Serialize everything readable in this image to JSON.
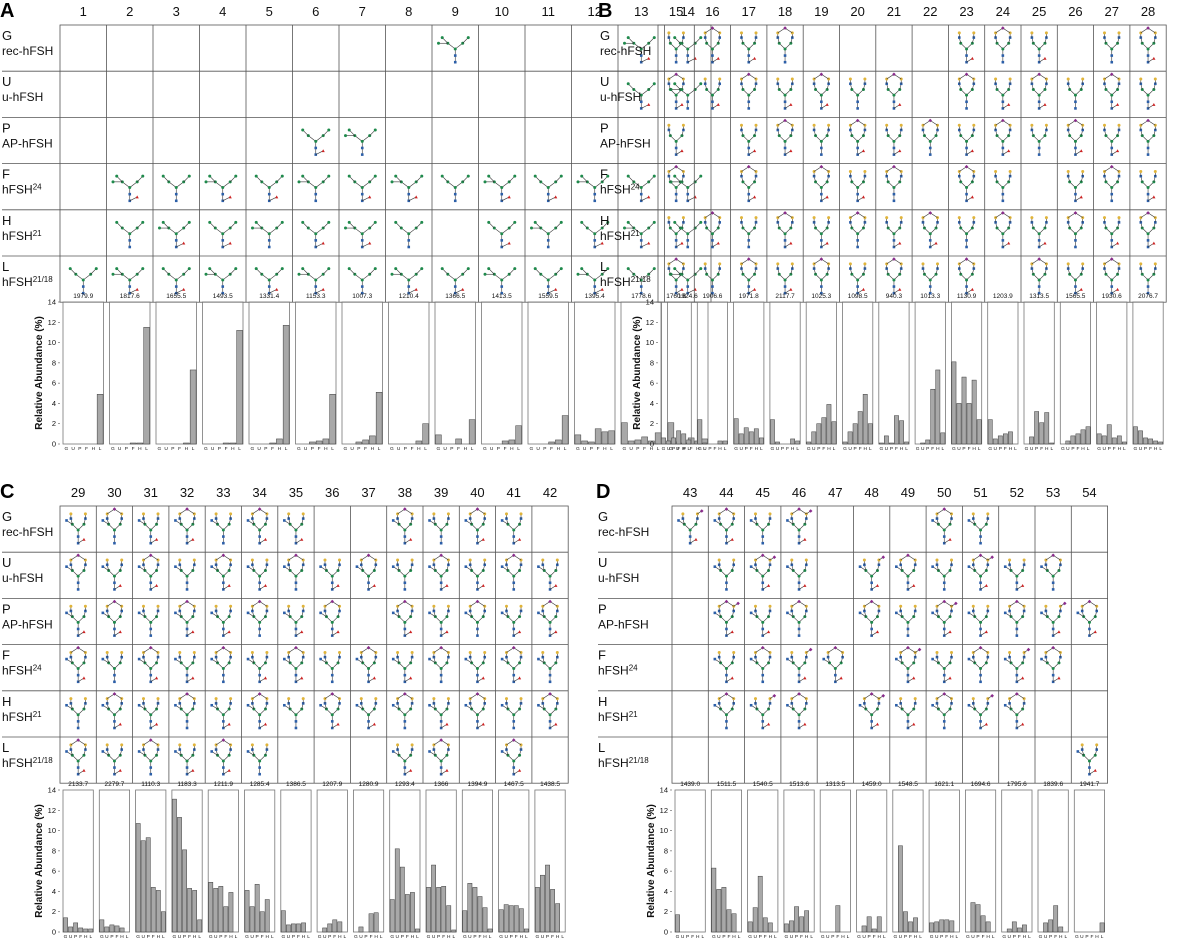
{
  "panels": [
    {
      "label": "A",
      "columns": [
        "1",
        "2",
        "3",
        "4",
        "5",
        "6",
        "7",
        "8",
        "9",
        "10",
        "11",
        "12",
        "13",
        "14"
      ],
      "rows": [
        {
          "code": "G",
          "name": "rec-hFSH",
          "present": [
            9,
            13,
            14
          ]
        },
        {
          "code": "U",
          "name": "u-hFSH",
          "present": [
            13,
            14
          ]
        },
        {
          "code": "P",
          "name": "AP-hFSH",
          "present": [
            6,
            7
          ]
        },
        {
          "code": "F",
          "name": "hFSH",
          "sup": "24",
          "present": [
            2,
            3,
            4,
            5,
            6,
            7,
            8,
            9,
            10,
            11,
            12,
            13,
            14
          ]
        },
        {
          "code": "H",
          "name": "hFSH",
          "sup": "21",
          "present": [
            2,
            3,
            4,
            5,
            6,
            7,
            8,
            10,
            11,
            12,
            13,
            14
          ]
        },
        {
          "code": "L",
          "name": "hFSH",
          "sup": "21/18",
          "present": [
            1,
            2,
            3,
            4,
            5,
            6,
            7,
            8,
            9,
            10,
            11,
            12,
            13,
            14
          ]
        }
      ],
      "masses": [
        "1979.9",
        "1817.6",
        "1655.5",
        "1493.5",
        "1331.4",
        "1153.3",
        "1007.3",
        "1210.4",
        "1366.5",
        "1413.5",
        "1559.5",
        "1395.4",
        "1778.6",
        "1924.6"
      ]
    },
    {
      "label": "B",
      "columns": [
        "15",
        "16",
        "17",
        "18",
        "19",
        "20",
        "21",
        "22",
        "23",
        "24",
        "25",
        "26",
        "27",
        "28"
      ],
      "rows": [
        {
          "code": "G",
          "name": "rec-hFSH",
          "present": [
            15,
            16,
            17,
            18,
            23,
            24,
            25,
            27,
            28
          ]
        },
        {
          "code": "U",
          "name": "u-hFSH",
          "present": [
            15,
            16,
            17,
            18,
            19,
            20,
            21,
            23,
            24,
            25,
            26,
            27,
            28
          ]
        },
        {
          "code": "P",
          "name": "AP-hFSH",
          "present": [
            15,
            17,
            18,
            19,
            20,
            21,
            22,
            23,
            24,
            25,
            26,
            27,
            28
          ]
        },
        {
          "code": "F",
          "name": "hFSH",
          "sup": "24",
          "present": [
            15,
            17,
            19,
            20,
            21,
            23,
            24,
            26,
            27,
            28
          ]
        },
        {
          "code": "H",
          "name": "hFSH",
          "sup": "21",
          "present": [
            15,
            16,
            17,
            18,
            19,
            20,
            21,
            22,
            23,
            24,
            25,
            26,
            27,
            28
          ]
        },
        {
          "code": "L",
          "name": "hFSH",
          "sup": "21/18",
          "present": [
            15,
            16,
            17,
            18,
            19,
            20,
            21,
            22,
            23,
            25,
            26,
            27,
            28
          ]
        }
      ],
      "masses": [
        "1760.6",
        "1906.6",
        "1971.8",
        "2117.7",
        "1025.3",
        "1098.5",
        "940.3",
        "1013.3",
        "1130.9",
        "1203.9",
        "1313.5",
        "1565.5",
        "1930.6",
        "2076.7"
      ]
    },
    {
      "label": "C",
      "columns": [
        "29",
        "30",
        "31",
        "32",
        "33",
        "34",
        "35",
        "36",
        "37",
        "38",
        "39",
        "40",
        "41",
        "42"
      ],
      "rows": [
        {
          "code": "G",
          "name": "rec-hFSH",
          "present": [
            29,
            30,
            31,
            32,
            33,
            34,
            35,
            38,
            39,
            40,
            41
          ]
        },
        {
          "code": "U",
          "name": "u-hFSH",
          "present": [
            29,
            30,
            31,
            32,
            33,
            34,
            35,
            36,
            37,
            38,
            39,
            40,
            41,
            42
          ]
        },
        {
          "code": "P",
          "name": "AP-hFSH",
          "present": [
            29,
            30,
            31,
            32,
            33,
            34,
            35,
            36,
            38,
            39,
            40,
            41,
            42
          ]
        },
        {
          "code": "F",
          "name": "hFSH",
          "sup": "24",
          "present": [
            29,
            30,
            31,
            32,
            33,
            34,
            35,
            36,
            37,
            38,
            39,
            40,
            41,
            42
          ]
        },
        {
          "code": "H",
          "name": "hFSH",
          "sup": "21",
          "present": [
            29,
            30,
            31,
            32,
            33,
            34,
            35,
            36,
            37,
            38,
            39,
            40,
            41,
            42
          ]
        },
        {
          "code": "L",
          "name": "hFSH",
          "sup": "21/18",
          "present": [
            29,
            30,
            31,
            32,
            33,
            34,
            38,
            39,
            41
          ]
        }
      ],
      "masses": [
        "2133.7",
        "2279.7",
        "1110.3",
        "1183.3",
        "1211.9",
        "1285.4",
        "1386.5",
        "1207.9",
        "1280.9",
        "1293.4",
        "1366",
        "1394.9",
        "1467.5",
        "1438.5"
      ]
    },
    {
      "label": "D",
      "columns": [
        "43",
        "44",
        "45",
        "46",
        "47",
        "48",
        "49",
        "50",
        "51",
        "52",
        "53",
        "54"
      ],
      "rows": [
        {
          "code": "G",
          "name": "rec-hFSH",
          "present": [
            43,
            44,
            45,
            46,
            50,
            51
          ]
        },
        {
          "code": "U",
          "name": "u-hFSH",
          "present": [
            44,
            45,
            46,
            48,
            49,
            50,
            51,
            52,
            53
          ]
        },
        {
          "code": "P",
          "name": "AP-hFSH",
          "present": [
            44,
            45,
            46,
            48,
            49,
            50,
            51,
            52,
            53,
            54
          ]
        },
        {
          "code": "F",
          "name": "hFSH",
          "sup": "24",
          "present": [
            44,
            45,
            46,
            47,
            49,
            50,
            51,
            52,
            53
          ]
        },
        {
          "code": "H",
          "name": "hFSH",
          "sup": "21",
          "present": [
            44,
            45,
            46,
            48,
            49,
            50,
            51,
            52
          ]
        },
        {
          "code": "L",
          "name": "hFSH",
          "sup": "21/18",
          "present": [
            54
          ]
        }
      ],
      "masses": [
        "1439.0",
        "1511.5",
        "1540.5",
        "1513.6",
        "1313.5",
        "1459.0",
        "1548.5",
        "1621.1",
        "1694.6",
        "1795.6",
        "1839.6",
        "1941.7"
      ]
    }
  ],
  "chart_data": {
    "type": "bar",
    "ylabel": "Relative Abundance (%)",
    "ylim": [
      0,
      14
    ],
    "yticks": [
      "0",
      "2",
      "4",
      "6",
      "8",
      "10",
      "12",
      "14"
    ],
    "categories": [
      "G",
      "U",
      "P",
      "F",
      "H",
      "L"
    ],
    "values_by_structure": {
      "1": [
        0,
        0,
        0,
        0,
        0,
        4.9
      ],
      "2": [
        0,
        0,
        0,
        0.1,
        0.1,
        11.5
      ],
      "3": [
        0,
        0,
        0,
        0,
        0.1,
        7.3
      ],
      "4": [
        0,
        0,
        0,
        0.1,
        0.1,
        11.2
      ],
      "5": [
        0,
        0,
        0,
        0.1,
        0.5,
        11.7
      ],
      "6": [
        0,
        0,
        0.2,
        0.3,
        0.5,
        4.9
      ],
      "7": [
        0,
        0,
        0.2,
        0.4,
        0.8,
        5.1
      ],
      "8": [
        0,
        0,
        0,
        0,
        0.3,
        2
      ],
      "9": [
        0.9,
        0,
        0,
        0.5,
        0,
        2.4
      ],
      "10": [
        0,
        0,
        0,
        0.3,
        0.4,
        1.8
      ],
      "11": [
        0,
        0,
        0,
        0.2,
        0.4,
        2.8
      ],
      "12": [
        0.9,
        0.3,
        0.2,
        1.5,
        1.2,
        1.3
      ],
      "13": [
        2.1,
        0.3,
        0.4,
        0.7,
        0.3,
        1.1
      ],
      "14": [
        2.1,
        0.2,
        0.1,
        0.6,
        0.3,
        0.5
      ],
      "15": [
        0.6,
        0.3,
        0.6,
        1.3,
        1,
        0.4
      ],
      "16": [
        2.4,
        0.1,
        0,
        0,
        0.3,
        0.3
      ],
      "17": [
        2.5,
        1,
        1.6,
        1.2,
        1.5,
        0.6
      ],
      "18": [
        2.4,
        0.2,
        0,
        0,
        0.5,
        0.3
      ],
      "19": [
        0.2,
        1.2,
        2,
        2.6,
        3.9,
        2.2
      ],
      "20": [
        0.2,
        1.2,
        2,
        3.2,
        4.9,
        2
      ],
      "21": [
        0.1,
        0.8,
        0.1,
        2.8,
        2.3,
        0.2
      ],
      "22": [
        0,
        0.1,
        0.4,
        5.4,
        7.3,
        1.1
      ],
      "23": [
        8.1,
        4,
        6.6,
        4,
        6.3,
        2.4
      ],
      "24": [
        2.4,
        0.5,
        0.8,
        1,
        1.2,
        0
      ],
      "25": [
        0,
        0.7,
        3.2,
        2.1,
        3.1,
        0.1
      ],
      "26": [
        0,
        0.3,
        0.8,
        1,
        1.4,
        1.7
      ],
      "27": [
        1,
        0.8,
        1.9,
        0.6,
        0.8,
        0.2
      ],
      "28": [
        1.7,
        1.3,
        0.6,
        0.5,
        0.3,
        0.2
      ],
      "29": [
        1.4,
        0.5,
        0.9,
        0.4,
        0.3,
        0.3
      ],
      "30": [
        1.2,
        0.5,
        0.7,
        0.6,
        0.4,
        0
      ],
      "31": [
        10.7,
        9,
        9.3,
        4.4,
        4.1,
        2
      ],
      "32": [
        13.1,
        11.3,
        8.1,
        4.3,
        4.1,
        1.2
      ],
      "33": [
        4.9,
        4.3,
        4.5,
        2.5,
        3.9,
        0
      ],
      "34": [
        4.1,
        2.5,
        4.7,
        2,
        3.2,
        0
      ],
      "35": [
        2.1,
        0.7,
        0.8,
        0.8,
        0.9,
        0
      ],
      "36": [
        0,
        0.4,
        0.8,
        1.2,
        1,
        0
      ],
      "37": [
        0,
        0.5,
        0,
        1.8,
        1.9,
        0
      ],
      "38": [
        3.2,
        8.2,
        6.4,
        3.7,
        3.9,
        0.3
      ],
      "39": [
        4.4,
        6.6,
        4.4,
        4.5,
        2.6,
        0.2
      ],
      "40": [
        2.1,
        4.8,
        4.4,
        3.5,
        2.4,
        0.3
      ],
      "41": [
        2.2,
        2.7,
        2.6,
        2.6,
        2.3,
        0.3
      ],
      "42": [
        4.4,
        5.6,
        6.6,
        4.2,
        2.8,
        0
      ],
      "43": [
        1.7,
        0,
        0,
        0,
        0,
        0
      ],
      "44": [
        6.3,
        4.2,
        4.4,
        2.2,
        1.8,
        0
      ],
      "45": [
        1,
        2.4,
        5.5,
        1.4,
        0.9,
        0
      ],
      "46": [
        0.8,
        1.1,
        2.5,
        1.5,
        2.1,
        0
      ],
      "47": [
        0,
        0,
        0,
        2.6,
        0,
        0
      ],
      "48": [
        0,
        0.6,
        1.5,
        0.3,
        1.5,
        0
      ],
      "49": [
        0,
        8.5,
        2,
        1,
        1.4,
        0
      ],
      "50": [
        0.9,
        1,
        1.2,
        1.2,
        1.1,
        0
      ],
      "51": [
        0,
        2.9,
        2.7,
        1.6,
        1,
        0
      ],
      "52": [
        0,
        0.3,
        1,
        0.4,
        0.7,
        0
      ],
      "53": [
        0,
        0.9,
        1.2,
        2.6,
        0.5,
        0
      ],
      "54": [
        0,
        0,
        0,
        0,
        0,
        0.9
      ]
    }
  }
}
